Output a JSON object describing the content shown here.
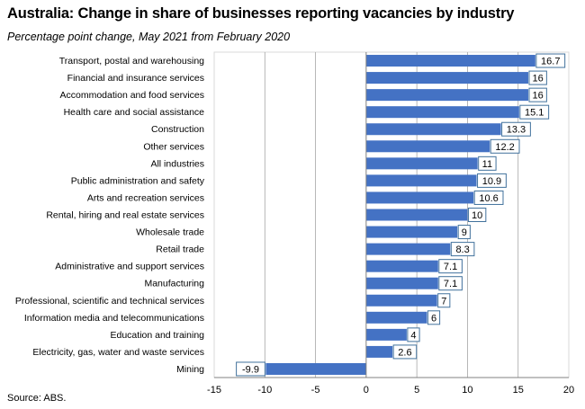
{
  "title": "Australia: Change in share of businesses reporting vacancies by industry",
  "subtitle": "Percentage point change, May 2021 from February 2020",
  "source": "Source: ABS.",
  "colors": {
    "bar": "#4472C4",
    "label_border": "#41719C",
    "grid": "#A6A6A6"
  },
  "chart_data": {
    "type": "bar",
    "orientation": "horizontal",
    "categories": [
      "Transport, postal and warehousing",
      "Financial and insurance services",
      "Accommodation and food services",
      "Health care and social assistance",
      "Construction",
      "Other services",
      "All industries",
      "Public administration and safety",
      "Arts and recreation services",
      "Rental, hiring and real estate services",
      "Wholesale trade",
      "Retail trade",
      "Administrative and support services",
      "Manufacturing",
      "Professional, scientific and technical services",
      "Information media and telecommunications",
      "Education and training",
      "Electricity, gas, water and waste services",
      "Mining"
    ],
    "values": [
      16.7,
      16,
      16,
      15.1,
      13.3,
      12.2,
      11,
      10.9,
      10.6,
      10,
      9,
      8.3,
      7.1,
      7.1,
      7,
      6,
      4,
      2.6,
      -9.9
    ],
    "value_labels": [
      "16.7",
      "16",
      "16",
      "15.1",
      "13.3",
      "12.2",
      "11",
      "10.9",
      "10.6",
      "10",
      "9",
      "8.3",
      "7.1",
      "7.1",
      "7",
      "6",
      "4",
      "2.6",
      "-9.9"
    ],
    "xlim": [
      -15,
      20
    ],
    "xticks": [
      -15,
      -10,
      -5,
      0,
      5,
      10,
      15,
      20
    ],
    "xtick_labels": [
      "-15",
      "-10",
      "-5",
      "0",
      "5",
      "10",
      "15",
      "20"
    ],
    "grid": "vertical"
  }
}
